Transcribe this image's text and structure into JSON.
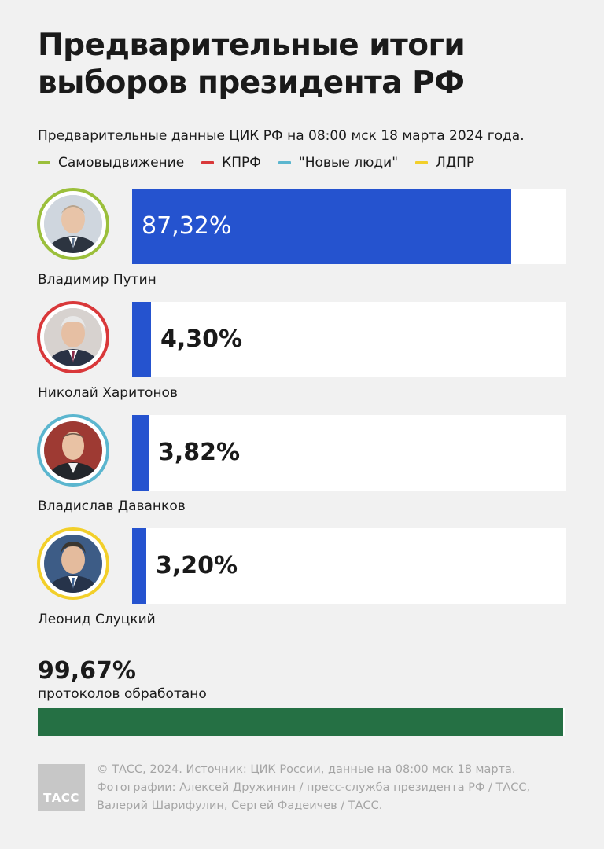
{
  "header": {
    "title": "Предварительные итоги выборов президента РФ",
    "subtitle": "Предварительные данные ЦИК РФ на 08:00 мск 18 марта 2024 года."
  },
  "legend": [
    {
      "label": "Самовыдвижение",
      "color": "#9bbf3b"
    },
    {
      "label": "КПРФ",
      "color": "#d9383a"
    },
    {
      "label": "\"Новые люди\"",
      "color": "#5bb6cf"
    },
    {
      "label": "ЛДПР",
      "color": "#f2cf2a"
    }
  ],
  "chart_data": {
    "type": "bar",
    "orientation": "horizontal",
    "title": "Предварительные итоги выборов президента РФ",
    "subtitle": "Предварительные данные ЦИК РФ на 08:00 мск 18 марта 2024 года.",
    "unit": "%",
    "xlim": [
      0,
      100
    ],
    "categories": [
      "Владимир Путин",
      "Николай Харитонов",
      "Владислав Даванков",
      "Леонид Слуцкий"
    ],
    "values": [
      87.32,
      4.3,
      3.82,
      3.2
    ],
    "labels": [
      "87,32%",
      "4,30%",
      "3,82%",
      "3,20%"
    ],
    "parties": [
      "Самовыдвижение",
      "КПРФ",
      "\"Новые люди\"",
      "ЛДПР"
    ],
    "bar_color": "#2553cf",
    "legend_placement": "top-left"
  },
  "candidates": [
    {
      "name": "Владимир Путин",
      "value": 87.32,
      "label": "87,32%",
      "ring_color": "#9bbf3b",
      "suit": "#2c3440",
      "bg": "#cfd6de"
    },
    {
      "name": "Николай Харитонов",
      "value": 4.3,
      "label": "4,30%",
      "ring_color": "#d9383a",
      "suit": "#2a3245",
      "bg": "#d7d2cf"
    },
    {
      "name": "Владислав Даванков",
      "value": 3.82,
      "label": "3,82%",
      "ring_color": "#5bb6cf",
      "suit": "#23262b",
      "bg": "#9e3a33"
    },
    {
      "name": "Леонид Слуцкий",
      "value": 3.2,
      "label": "3,20%",
      "ring_color": "#f2cf2a",
      "suit": "#26334a",
      "bg": "#3d5c86"
    }
  ],
  "processed": {
    "value": 99.67,
    "value_label": "99,67%",
    "label": "протоколов обработано",
    "color": "#257044"
  },
  "footer": {
    "logo_text": "ТАСС",
    "lines": [
      "© ТАСС, 2024. Источник: ЦИК России, данные на 08:00 мск 18 марта.",
      "Фотографии: Алексей Дружинин / пресс-служба президента РФ / ТАСС,",
      "Валерий Шарифулин, Сергей Фадеичев / ТАСС."
    ]
  }
}
